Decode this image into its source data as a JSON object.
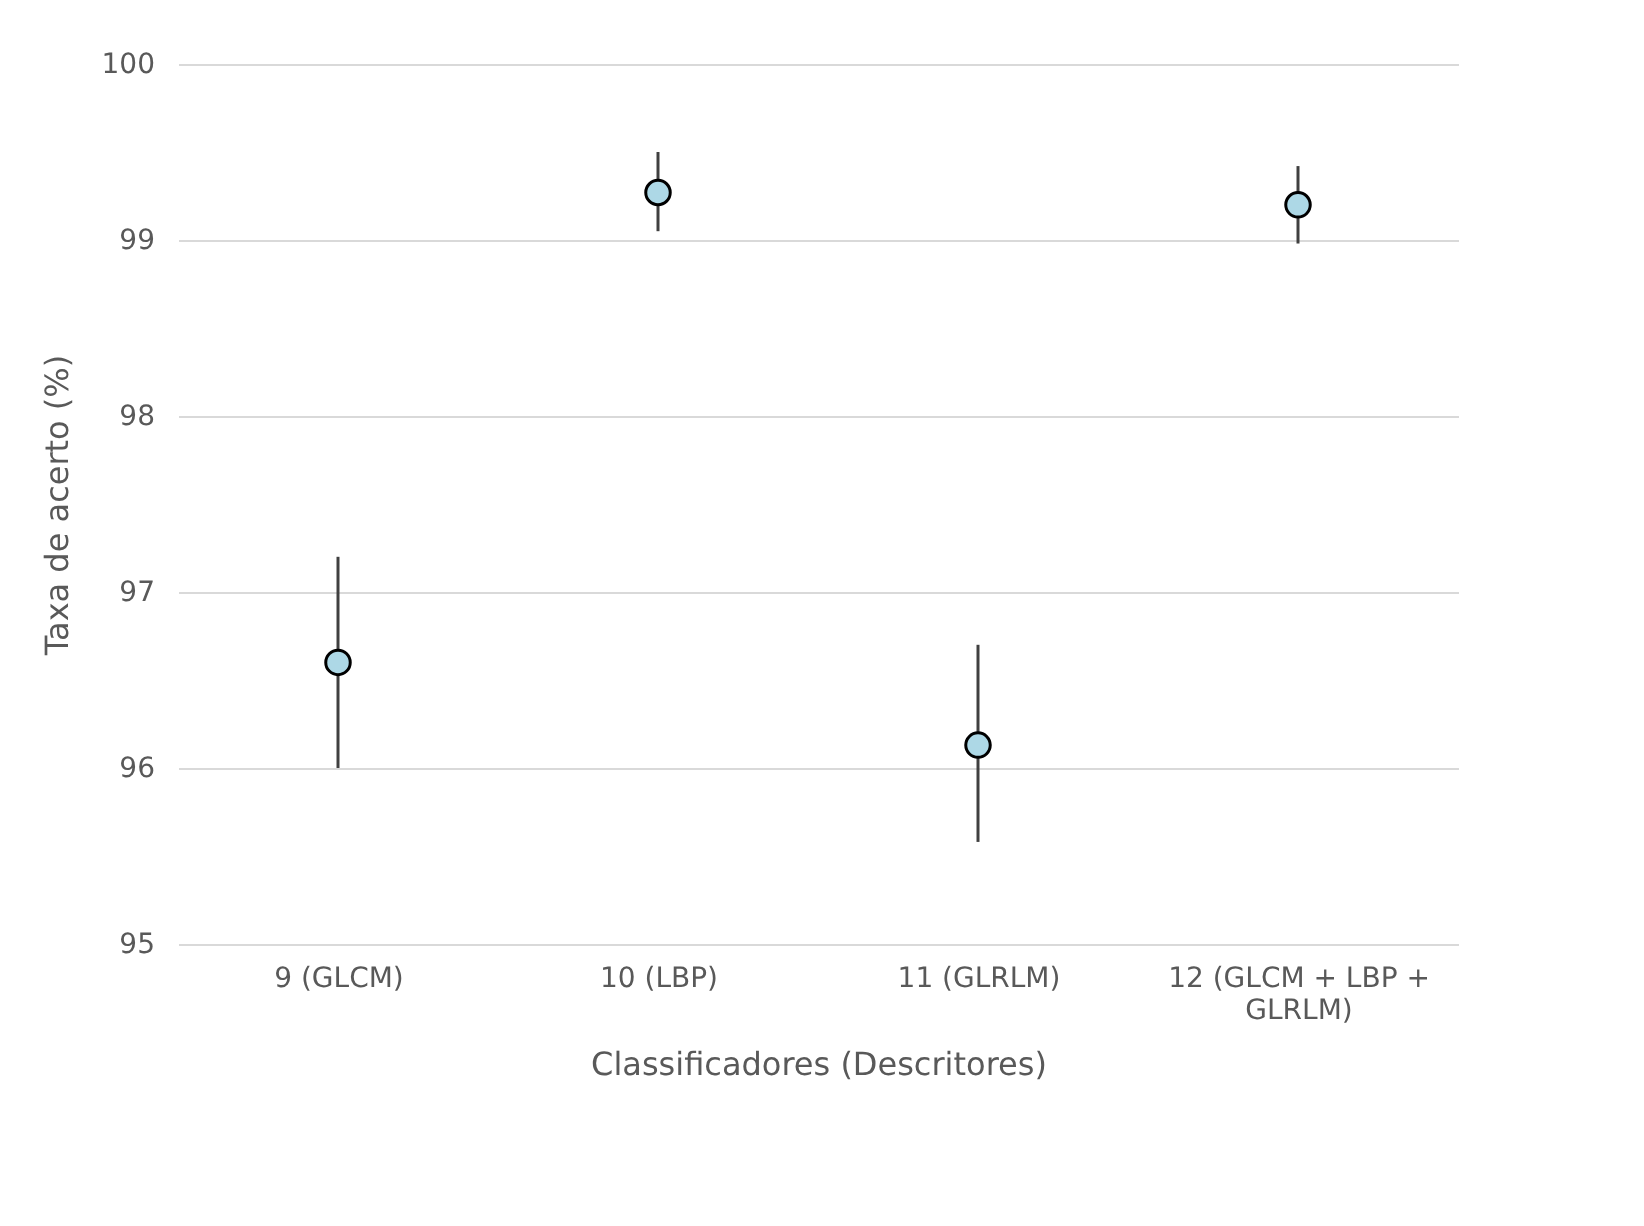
{
  "chart_data": {
    "type": "scatter",
    "xlabel": "Classificadores (Descritores)",
    "ylabel": "Taxa de acerto (%)",
    "categories": [
      "9 (GLCM)",
      "10 (LBP)",
      "11 (GLRLM)",
      "12 (GLCM + LBP + GLRLM)"
    ],
    "series": [
      {
        "color": "#add8e6",
        "values": [
          96.6,
          99.27,
          96.13,
          99.2
        ],
        "errors": [
          [
            96.0,
            97.2
          ],
          [
            99.05,
            99.5
          ],
          [
            95.58,
            96.7
          ],
          [
            98.98,
            99.42
          ]
        ]
      }
    ],
    "ylim": [
      95,
      100
    ],
    "yticks": [
      95,
      96,
      97,
      98,
      99,
      100
    ],
    "grid": "y",
    "marker": "circle",
    "legend": false
  }
}
